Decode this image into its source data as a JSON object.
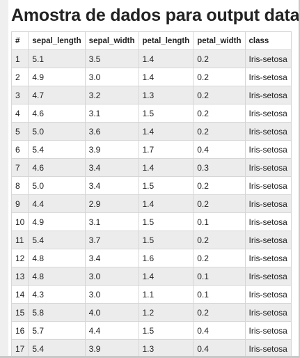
{
  "title": "Amostra de dados para output data",
  "table": {
    "columns": [
      "#",
      "sepal_length",
      "sepal_width",
      "petal_length",
      "petal_width",
      "class"
    ],
    "rows": [
      [
        "1",
        "5.1",
        "3.5",
        "1.4",
        "0.2",
        "Iris-setosa"
      ],
      [
        "2",
        "4.9",
        "3.0",
        "1.4",
        "0.2",
        "Iris-setosa"
      ],
      [
        "3",
        "4.7",
        "3.2",
        "1.3",
        "0.2",
        "Iris-setosa"
      ],
      [
        "4",
        "4.6",
        "3.1",
        "1.5",
        "0.2",
        "Iris-setosa"
      ],
      [
        "5",
        "5.0",
        "3.6",
        "1.4",
        "0.2",
        "Iris-setosa"
      ],
      [
        "6",
        "5.4",
        "3.9",
        "1.7",
        "0.4",
        "Iris-setosa"
      ],
      [
        "7",
        "4.6",
        "3.4",
        "1.4",
        "0.3",
        "Iris-setosa"
      ],
      [
        "8",
        "5.0",
        "3.4",
        "1.5",
        "0.2",
        "Iris-setosa"
      ],
      [
        "9",
        "4.4",
        "2.9",
        "1.4",
        "0.2",
        "Iris-setosa"
      ],
      [
        "10",
        "4.9",
        "3.1",
        "1.5",
        "0.1",
        "Iris-setosa"
      ],
      [
        "11",
        "5.4",
        "3.7",
        "1.5",
        "0.2",
        "Iris-setosa"
      ],
      [
        "12",
        "4.8",
        "3.4",
        "1.6",
        "0.2",
        "Iris-setosa"
      ],
      [
        "13",
        "4.8",
        "3.0",
        "1.4",
        "0.1",
        "Iris-setosa"
      ],
      [
        "14",
        "4.3",
        "3.0",
        "1.1",
        "0.1",
        "Iris-setosa"
      ],
      [
        "15",
        "5.8",
        "4.0",
        "1.2",
        "0.2",
        "Iris-setosa"
      ],
      [
        "16",
        "5.7",
        "4.4",
        "1.5",
        "0.4",
        "Iris-setosa"
      ],
      [
        "17",
        "5.4",
        "3.9",
        "1.3",
        "0.4",
        "Iris-setosa"
      ]
    ]
  }
}
